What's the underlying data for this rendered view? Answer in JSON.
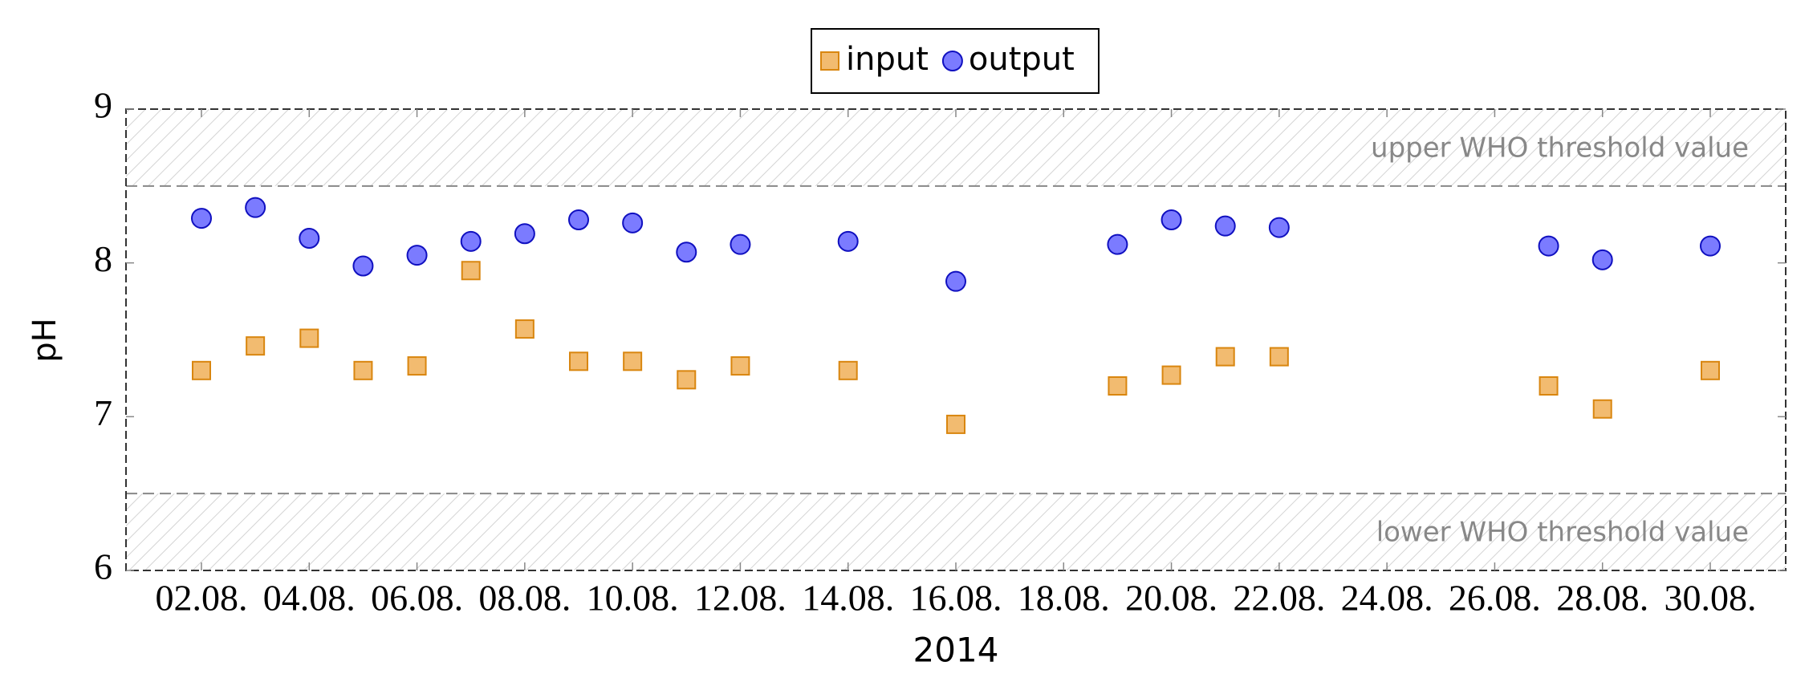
{
  "chart_data": {
    "type": "scatter",
    "ylabel": "pH",
    "xlabel": "2014",
    "xlim": [
      0.6,
      31.4
    ],
    "xticks": [
      {
        "value": 2,
        "label": "02.08."
      },
      {
        "value": 4,
        "label": "04.08."
      },
      {
        "value": 6,
        "label": "06.08."
      },
      {
        "value": 8,
        "label": "08.08."
      },
      {
        "value": 10,
        "label": "10.08."
      },
      {
        "value": 12,
        "label": "12.08."
      },
      {
        "value": 14,
        "label": "14.08."
      },
      {
        "value": 16,
        "label": "16.08."
      },
      {
        "value": 18,
        "label": "18.08."
      },
      {
        "value": 20,
        "label": "20.08."
      },
      {
        "value": 22,
        "label": "22.08."
      },
      {
        "value": 24,
        "label": "24.08."
      },
      {
        "value": 26,
        "label": "26.08."
      },
      {
        "value": 28,
        "label": "28.08."
      },
      {
        "value": 30,
        "label": "30.08."
      }
    ],
    "ylim": [
      6,
      9
    ],
    "yticks": [
      6,
      7,
      8,
      9
    ],
    "legend": "top",
    "x": [
      2,
      3,
      4,
      5,
      6,
      7,
      8,
      9,
      10,
      11,
      12,
      14,
      16,
      19,
      20,
      21,
      22,
      27,
      28,
      30
    ],
    "series": [
      {
        "name": "input",
        "color": "#f2bb70",
        "marker": "square",
        "values": [
          7.3,
          7.46,
          7.51,
          7.3,
          7.33,
          7.95,
          7.57,
          7.36,
          7.36,
          7.24,
          7.33,
          7.3,
          6.95,
          7.2,
          7.27,
          7.39,
          7.39,
          7.2,
          7.05,
          7.3
        ]
      },
      {
        "name": "output",
        "color": "#7b7bff",
        "marker": "circle",
        "values": [
          8.29,
          8.36,
          8.16,
          7.98,
          8.05,
          8.14,
          8.19,
          8.28,
          8.26,
          8.07,
          8.12,
          8.14,
          7.88,
          8.12,
          8.28,
          8.24,
          8.23,
          8.11,
          8.02,
          8.11
        ]
      }
    ],
    "bands": [
      {
        "label": "upper WHO threshold value",
        "range": [
          8.5,
          9
        ]
      },
      {
        "label": "lower WHO threshold value",
        "range": [
          6,
          6.5
        ]
      }
    ]
  }
}
